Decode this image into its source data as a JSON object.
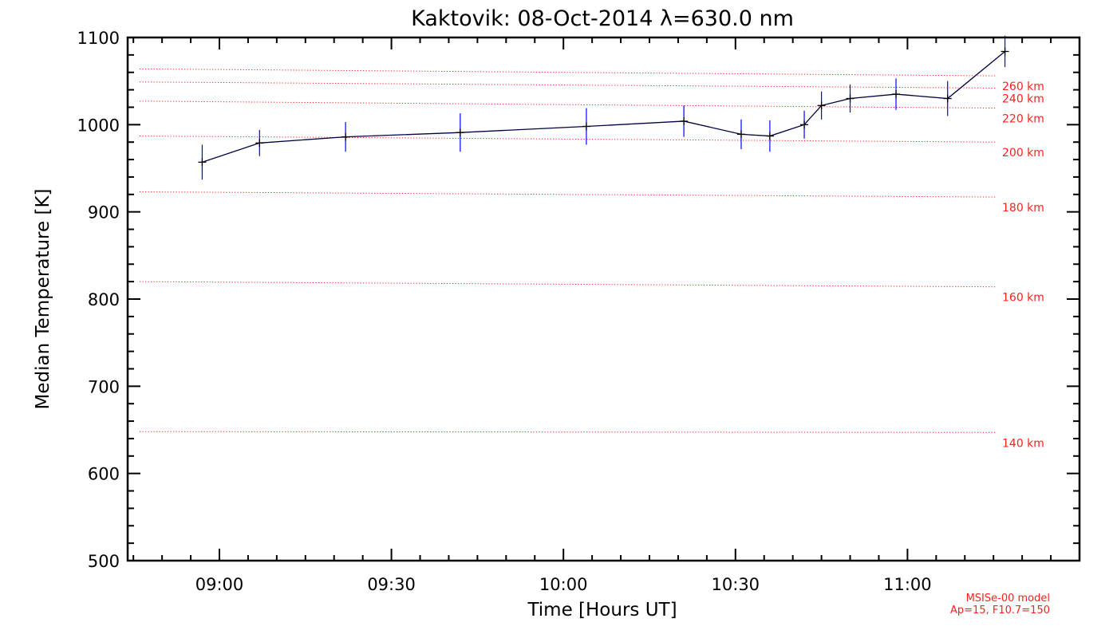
{
  "chart_data": {
    "type": "line",
    "title": "Kaktovik: 08-Oct-2014 λ=630.0 nm",
    "xlabel": "Time [Hours UT]",
    "ylabel": "Median Temperature [K]",
    "xlim": [
      "08:44",
      "11:30"
    ],
    "ylim": [
      500,
      1100
    ],
    "x_ticks": [
      "09:00",
      "09:30",
      "10:00",
      "10:30",
      "11:00"
    ],
    "y_ticks": [
      500,
      600,
      700,
      800,
      900,
      1000,
      1100
    ],
    "series": [
      {
        "x": [
          "08:57",
          "09:07",
          "09:22",
          "09:42",
          "10:04",
          "10:21",
          "10:31",
          "10:36",
          "10:42",
          "10:45",
          "10:50",
          "10:58",
          "11:07",
          "11:17"
        ],
        "y": [
          957,
          979,
          986,
          991,
          998,
          1004,
          989,
          987,
          1000,
          1022,
          1030,
          1035,
          1030,
          1084
        ],
        "error": [
          20,
          15,
          17,
          22,
          21,
          18,
          17,
          18,
          16,
          16,
          16,
          18,
          20,
          18
        ],
        "color": "#000040",
        "error_color": "#0000ff"
      }
    ],
    "reference_lines": [
      {
        "label": "140 km",
        "y_start": 648,
        "y_end": 647
      },
      {
        "label": "160 km",
        "y_start": 820,
        "y_end": 814
      },
      {
        "label": "180 km",
        "y_start": 923,
        "y_end": 917
      },
      {
        "label": "200 km",
        "y_start": 987,
        "y_end": 980
      },
      {
        "label": "220 km",
        "y_start": 1027,
        "y_end": 1019
      },
      {
        "label": "240 km",
        "y_start": 1049,
        "y_end": 1042
      },
      {
        "label": "260 km",
        "y_start": 1064,
        "y_end": 1056
      }
    ],
    "reference_color": "#ff2020",
    "annotation": [
      "MSISe-00 model",
      "Ap=15, F10.7=150"
    ],
    "grid": false
  }
}
